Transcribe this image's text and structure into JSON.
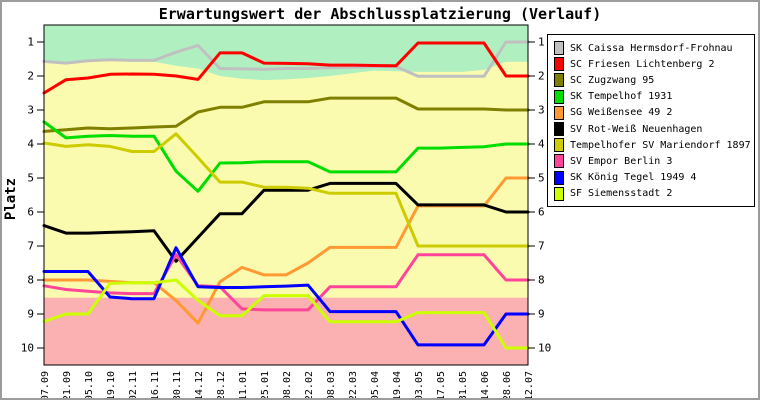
{
  "title": "Erwartungswert der Abschlussplatzierung (Verlauf)",
  "y_axis": {
    "label": "Platz",
    "ticks": [
      1,
      2,
      3,
      4,
      5,
      6,
      7,
      8,
      9,
      10
    ]
  },
  "chart_data": {
    "type": "line",
    "title": "Erwartungswert der Abschlussplatzierung (Verlauf)",
    "xlabel": "",
    "ylabel": "Platz",
    "ylim": [
      0.5,
      10.5
    ],
    "y_inverted": true,
    "grid": false,
    "legend_position": "right",
    "x": [
      "07.09",
      "21.09",
      "05.10",
      "19.10",
      "02.11",
      "16.11",
      "30.11",
      "14.12",
      "28.12",
      "11.01",
      "25.01",
      "08.02",
      "22.02",
      "08.03",
      "22.03",
      "05.04",
      "19.04",
      "03.05",
      "17.05",
      "31.05",
      "14.06",
      "28.06",
      "12.07"
    ],
    "series": [
      {
        "name": "SK Caissa Hermsdorf-Frohnau",
        "color": "#C0C0C0",
        "values": [
          1.57,
          1.62,
          1.55,
          1.52,
          1.54,
          1.54,
          1.3,
          1.1,
          1.78,
          1.79,
          1.8,
          1.78,
          1.78,
          1.76,
          1.74,
          1.72,
          1.72,
          2.01,
          2.01,
          2.01,
          2.01,
          1.0,
          1.0
        ]
      },
      {
        "name": "SC Friesen Lichtenberg 2",
        "color": "#FF0000",
        "values": [
          2.5,
          2.11,
          2.06,
          1.95,
          1.94,
          1.95,
          2.0,
          2.1,
          1.32,
          1.32,
          1.62,
          1.63,
          1.64,
          1.68,
          1.68,
          1.69,
          1.7,
          1.03,
          1.03,
          1.03,
          1.03,
          2.0,
          2.0
        ]
      },
      {
        "name": "SC Zugzwang 95",
        "color": "#808000",
        "values": [
          3.63,
          3.58,
          3.53,
          3.55,
          3.53,
          3.5,
          3.48,
          3.06,
          2.92,
          2.92,
          2.76,
          2.76,
          2.76,
          2.65,
          2.65,
          2.65,
          2.65,
          2.97,
          2.97,
          2.97,
          2.97,
          3.0,
          3.0
        ]
      },
      {
        "name": "SK Tempelhof 1931",
        "color": "#00DD00",
        "values": [
          3.35,
          3.82,
          3.77,
          3.75,
          3.77,
          3.77,
          4.8,
          5.39,
          4.56,
          4.55,
          4.52,
          4.52,
          4.52,
          4.82,
          4.82,
          4.82,
          4.82,
          4.12,
          4.12,
          4.1,
          4.08,
          4.0,
          4.0
        ]
      },
      {
        "name": "SG Weißensee 49 2",
        "color": "#FF9933",
        "values": [
          8.0,
          8.0,
          8.0,
          8.04,
          8.08,
          8.08,
          8.6,
          9.27,
          8.05,
          7.63,
          7.85,
          7.85,
          7.5,
          7.04,
          7.04,
          7.04,
          7.04,
          5.82,
          5.82,
          5.82,
          5.82,
          5.0,
          5.0
        ]
      },
      {
        "name": "SV Rot-Weiß Neuenhagen",
        "color": "#000000",
        "values": [
          6.4,
          6.62,
          6.62,
          6.6,
          6.58,
          6.55,
          7.45,
          6.75,
          6.05,
          6.05,
          5.36,
          5.36,
          5.36,
          5.16,
          5.16,
          5.16,
          5.16,
          5.79,
          5.79,
          5.79,
          5.79,
          6.0,
          6.0
        ]
      },
      {
        "name": "Tempelhofer SV Mariendorf 1897",
        "color": "#CCCC00",
        "values": [
          3.97,
          4.07,
          4.02,
          4.07,
          4.22,
          4.22,
          3.7,
          4.4,
          5.12,
          5.12,
          5.27,
          5.27,
          5.3,
          5.45,
          5.45,
          5.45,
          5.45,
          7.0,
          7.0,
          7.0,
          7.0,
          7.0,
          7.0
        ]
      },
      {
        "name": "SV Empor Berlin 3",
        "color": "#FF4499",
        "values": [
          8.17,
          8.28,
          8.33,
          8.38,
          8.4,
          8.4,
          7.25,
          8.17,
          8.2,
          8.85,
          8.88,
          8.88,
          8.88,
          8.2,
          8.2,
          8.2,
          8.2,
          7.26,
          7.26,
          7.26,
          7.26,
          8.0,
          8.0
        ]
      },
      {
        "name": "SK König Tegel 1949 4",
        "color": "#0000FF",
        "values": [
          7.75,
          7.75,
          7.75,
          8.5,
          8.55,
          8.55,
          7.05,
          8.2,
          8.22,
          8.22,
          8.2,
          8.18,
          8.15,
          8.93,
          8.93,
          8.93,
          8.93,
          9.91,
          9.91,
          9.91,
          9.91,
          9.0,
          9.0
        ]
      },
      {
        "name": "SF Siemensstadt 2",
        "color": "#CCFF00",
        "values": [
          9.22,
          9.0,
          9.0,
          8.1,
          8.08,
          8.08,
          8.0,
          8.6,
          9.05,
          9.05,
          8.46,
          8.46,
          8.46,
          9.23,
          9.23,
          9.23,
          9.23,
          8.96,
          8.96,
          8.96,
          8.96,
          10.0,
          10.0
        ]
      }
    ],
    "zones": {
      "promotion_color": "#B0F0C0",
      "neutral_color": "#FBFBB0",
      "relegation_color": "#FBB1B1",
      "promotion_boundary_by_round": [
        1.6,
        1.64,
        1.58,
        1.55,
        1.56,
        1.58,
        1.7,
        1.78,
        2.0,
        2.08,
        2.12,
        2.1,
        2.06,
        2.0,
        1.92,
        1.84,
        1.86,
        1.88,
        1.88,
        1.88,
        1.82,
        1.58,
        1.58
      ],
      "relegation_boundary": 8.52
    }
  }
}
